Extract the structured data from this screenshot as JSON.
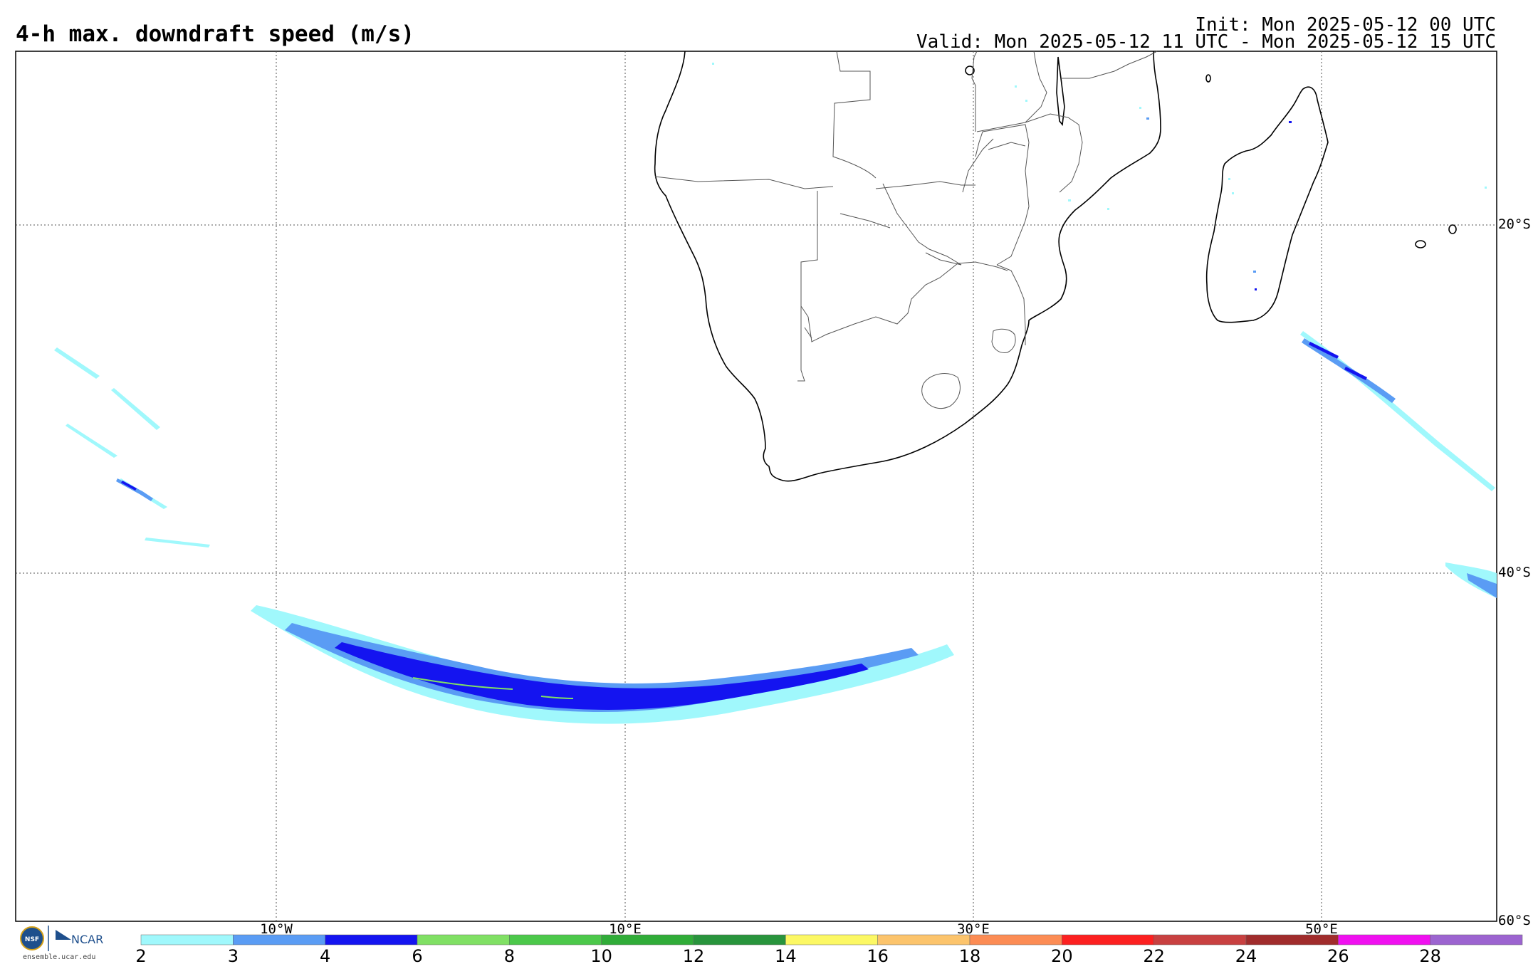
{
  "header": {
    "title": "4-h max. downdraft speed (m/s)",
    "init": "Init: Mon 2025-05-12 00 UTC",
    "valid": "Valid: Mon 2025-05-12 11 UTC - Mon 2025-05-12 15 UTC"
  },
  "map": {
    "lon_labels": [
      {
        "label": "10°W",
        "lon": -10
      },
      {
        "label": "10°E",
        "lon": 10
      },
      {
        "label": "30°E",
        "lon": 30
      },
      {
        "label": "50°E",
        "lon": 50
      }
    ],
    "lat_labels": [
      {
        "label": "20°S",
        "lat": -20
      },
      {
        "label": "40°S",
        "lat": -40
      },
      {
        "label": "60°S",
        "lat": -60
      }
    ],
    "region": "Southern Africa and South Atlantic / Indian Ocean"
  },
  "colorbar": {
    "ticks": [
      "2",
      "3",
      "4",
      "6",
      "8",
      "10",
      "12",
      "14",
      "16",
      "18",
      "20",
      "22",
      "24",
      "26",
      "28"
    ],
    "colors": [
      "#a0f8fc",
      "#5a9cf4",
      "#1414f0",
      "#80e064",
      "#4cc84a",
      "#30ac38",
      "#28943c",
      "#fcf864",
      "#fcc46c",
      "#fc8c54",
      "#fc2020",
      "#c84040",
      "#a02c2c",
      "#f010f0",
      "#9c64d0"
    ]
  },
  "logo": {
    "nsf": "NSF",
    "ncar": "NCAR",
    "url": "ensemble.ucar.edu"
  }
}
